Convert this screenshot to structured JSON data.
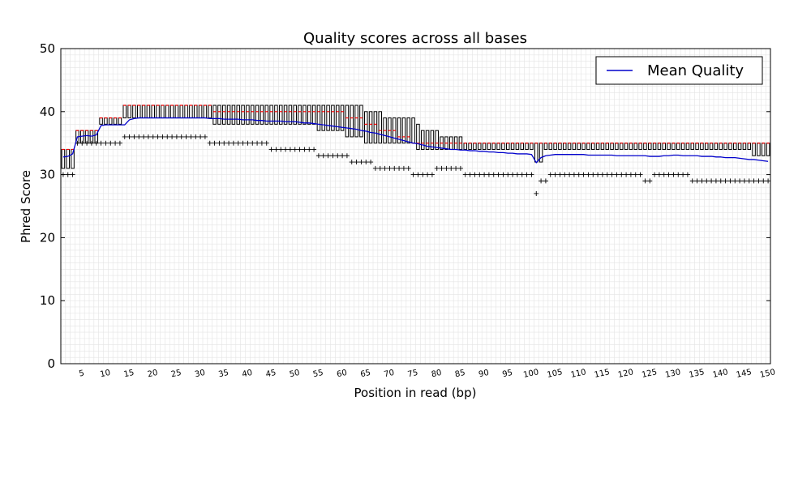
{
  "chart_data": {
    "type": "box",
    "title": "Quality scores across all bases",
    "xlabel": "Position in read (bp)",
    "ylabel": "Phred Score",
    "xlim": [
      1,
      150
    ],
    "ylim": [
      0,
      50
    ],
    "yticks": [
      0,
      10,
      20,
      30,
      40,
      50
    ],
    "xtick_labels": [
      "5",
      "10",
      "15",
      "20",
      "25",
      "30",
      "35",
      "40",
      "45",
      "50",
      "55",
      "60",
      "65",
      "70",
      "75",
      "80",
      "85",
      "90",
      "95",
      "100",
      "105",
      "110",
      "115",
      "120",
      "125",
      "130",
      "135",
      "140",
      "145",
      "150"
    ],
    "grid": true,
    "legend": {
      "entries": [
        "Mean Quality"
      ],
      "placement": "top-right"
    },
    "colors": {
      "mean": "#0000cc",
      "median": "#ff0000",
      "box": "#000000"
    },
    "positions": [
      1,
      2,
      3,
      4,
      5,
      6,
      7,
      8,
      9,
      10,
      11,
      12,
      13,
      14,
      15,
      16,
      17,
      18,
      19,
      20,
      21,
      22,
      23,
      24,
      25,
      26,
      27,
      28,
      29,
      30,
      31,
      32,
      33,
      34,
      35,
      36,
      37,
      38,
      39,
      40,
      41,
      42,
      43,
      44,
      45,
      46,
      47,
      48,
      49,
      50,
      51,
      52,
      53,
      54,
      55,
      56,
      57,
      58,
      59,
      60,
      61,
      62,
      63,
      64,
      65,
      66,
      67,
      68,
      69,
      70,
      71,
      72,
      73,
      74,
      75,
      76,
      77,
      78,
      79,
      80,
      81,
      82,
      83,
      84,
      85,
      86,
      87,
      88,
      89,
      90,
      91,
      92,
      93,
      94,
      95,
      96,
      97,
      98,
      99,
      100,
      101,
      102,
      103,
      104,
      105,
      106,
      107,
      108,
      109,
      110,
      111,
      112,
      113,
      114,
      115,
      116,
      117,
      118,
      119,
      120,
      121,
      122,
      123,
      124,
      125,
      126,
      127,
      128,
      129,
      130,
      131,
      132,
      133,
      134,
      135,
      136,
      137,
      138,
      139,
      140,
      141,
      142,
      143,
      144,
      145,
      146,
      147,
      148,
      149,
      150
    ],
    "series": [
      {
        "name": "Mean Quality",
        "values": [
          32.8,
          32.9,
          33.3,
          36,
          36.1,
          36.2,
          36.1,
          36.3,
          37.8,
          37.9,
          37.9,
          37.9,
          37.9,
          37.9,
          38.7,
          38.9,
          39.0,
          39.0,
          39.0,
          39.0,
          39.0,
          39.0,
          39.0,
          39.0,
          39.0,
          39.0,
          39.0,
          39.0,
          39.0,
          39.0,
          39.0,
          38.9,
          38.9,
          38.9,
          38.8,
          38.8,
          38.8,
          38.8,
          38.7,
          38.7,
          38.7,
          38.6,
          38.6,
          38.5,
          38.5,
          38.5,
          38.5,
          38.4,
          38.4,
          38.4,
          38.3,
          38.2,
          38.2,
          38.1,
          38.0,
          37.9,
          37.8,
          37.7,
          37.6,
          37.5,
          37.4,
          37.3,
          37.2,
          37.0,
          36.9,
          36.7,
          36.6,
          36.4,
          36.2,
          36.0,
          35.8,
          35.6,
          35.4,
          35.2,
          35.0,
          34.9,
          34.7,
          34.5,
          34.4,
          34.3,
          34.2,
          34.1,
          34.0,
          34.0,
          33.9,
          33.9,
          33.8,
          33.8,
          33.7,
          33.7,
          33.6,
          33.6,
          33.5,
          33.5,
          33.4,
          33.4,
          33.3,
          33.3,
          33.3,
          33.2,
          31.9,
          32.7,
          33.0,
          33.1,
          33.2,
          33.2,
          33.2,
          33.2,
          33.2,
          33.2,
          33.2,
          33.1,
          33.1,
          33.1,
          33.1,
          33.1,
          33.1,
          33.0,
          33.0,
          33.0,
          33.0,
          33.0,
          33.0,
          33.0,
          32.9,
          32.9,
          32.9,
          33.0,
          33.0,
          33.1,
          33.1,
          33.0,
          33.0,
          33.0,
          33.0,
          32.9,
          32.9,
          32.9,
          32.8,
          32.8,
          32.7,
          32.7,
          32.7,
          32.6,
          32.5,
          32.4,
          32.4,
          32.3,
          32.2,
          32.1
        ]
      },
      {
        "name": "Median",
        "values": [
          34,
          34,
          34,
          37,
          37,
          37,
          37,
          37,
          39,
          39,
          39,
          39,
          39,
          41,
          41,
          41,
          41,
          41,
          41,
          41,
          41,
          41,
          41,
          41,
          41,
          41,
          41,
          41,
          41,
          41,
          41,
          41,
          40,
          40,
          40,
          40,
          40,
          40,
          40,
          40,
          40,
          40,
          40,
          40,
          40,
          40,
          40,
          40,
          40,
          40,
          40,
          40,
          40,
          40,
          40,
          40,
          40,
          40,
          40,
          40,
          39,
          39,
          39,
          39,
          38,
          38,
          38,
          37,
          37,
          37,
          37,
          36,
          36,
          36,
          35,
          35,
          35,
          35,
          35,
          35,
          35,
          35,
          35,
          35,
          35,
          35,
          35,
          35,
          35,
          35,
          35,
          35,
          35,
          35,
          35,
          35,
          35,
          35,
          35,
          35,
          35,
          35,
          35,
          35,
          35,
          35,
          35,
          35,
          35,
          35,
          35,
          35,
          35,
          35,
          35,
          35,
          35,
          35,
          35,
          35,
          35,
          35,
          35,
          35,
          35,
          35,
          35,
          35,
          35,
          35,
          35,
          35,
          35,
          35,
          35,
          35,
          35,
          35,
          35,
          35,
          35,
          35,
          35,
          35,
          35,
          35,
          35,
          35,
          35,
          35
        ]
      },
      {
        "name": "Upper Quartile",
        "values": [
          34,
          34,
          34,
          37,
          37,
          37,
          37,
          37,
          39,
          39,
          39,
          39,
          39,
          41,
          41,
          41,
          41,
          41,
          41,
          41,
          41,
          41,
          41,
          41,
          41,
          41,
          41,
          41,
          41,
          41,
          41,
          41,
          41,
          41,
          41,
          41,
          41,
          41,
          41,
          41,
          41,
          41,
          41,
          41,
          41,
          41,
          41,
          41,
          41,
          41,
          41,
          41,
          41,
          41,
          41,
          41,
          41,
          41,
          41,
          41,
          41,
          41,
          41,
          41,
          40,
          40,
          40,
          40,
          39,
          39,
          39,
          39,
          39,
          39,
          39,
          38,
          37,
          37,
          37,
          37,
          36,
          36,
          36,
          36,
          36,
          35,
          35,
          35,
          35,
          35,
          35,
          35,
          35,
          35,
          35,
          35,
          35,
          35,
          35,
          35,
          35,
          35,
          35,
          35,
          35,
          35,
          35,
          35,
          35,
          35,
          35,
          35,
          35,
          35,
          35,
          35,
          35,
          35,
          35,
          35,
          35,
          35,
          35,
          35,
          35,
          35,
          35,
          35,
          35,
          35,
          35,
          35,
          35,
          35,
          35,
          35,
          35,
          35,
          35,
          35,
          35,
          35,
          35,
          35,
          35,
          35,
          35,
          35,
          35,
          35
        ]
      },
      {
        "name": "Lower Quartile",
        "values": [
          31,
          31,
          31,
          35,
          35,
          35,
          35,
          35,
          38,
          38,
          38,
          38,
          38,
          39,
          39,
          39,
          39,
          39,
          39,
          39,
          39,
          39,
          39,
          39,
          39,
          39,
          39,
          39,
          39,
          39,
          39,
          39,
          38,
          38,
          38,
          38,
          38,
          38,
          38,
          38,
          38,
          38,
          38,
          38,
          38,
          38,
          38,
          38,
          38,
          38,
          38,
          38,
          38,
          38,
          37,
          37,
          37,
          37,
          37,
          37,
          36,
          36,
          36,
          36,
          35,
          35,
          35,
          35,
          35,
          35,
          35,
          35,
          35,
          35,
          35,
          34,
          34,
          34,
          34,
          34,
          34,
          34,
          34,
          34,
          34,
          34,
          34,
          34,
          34,
          34,
          34,
          34,
          34,
          34,
          34,
          34,
          34,
          34,
          34,
          34,
          32,
          32,
          34,
          34,
          34,
          34,
          34,
          34,
          34,
          34,
          34,
          34,
          34,
          34,
          34,
          34,
          34,
          34,
          34,
          34,
          34,
          34,
          34,
          34,
          34,
          34,
          34,
          34,
          34,
          34,
          34,
          34,
          34,
          34,
          34,
          34,
          34,
          34,
          34,
          34,
          34,
          34,
          34,
          34,
          34,
          34,
          33,
          33,
          33,
          33
        ]
      },
      {
        "name": "10th Percentile",
        "values": [
          30,
          30,
          30,
          35,
          35,
          35,
          35,
          35,
          35,
          35,
          35,
          35,
          35,
          36,
          36,
          36,
          36,
          36,
          36,
          36,
          36,
          36,
          36,
          36,
          36,
          36,
          36,
          36,
          36,
          36,
          36,
          35,
          35,
          35,
          35,
          35,
          35,
          35,
          35,
          35,
          35,
          35,
          35,
          35,
          34,
          34,
          34,
          34,
          34,
          34,
          34,
          34,
          34,
          34,
          33,
          33,
          33,
          33,
          33,
          33,
          33,
          32,
          32,
          32,
          32,
          32,
          31,
          31,
          31,
          31,
          31,
          31,
          31,
          31,
          30,
          30,
          30,
          30,
          30,
          31,
          31,
          31,
          31,
          31,
          31,
          30,
          30,
          30,
          30,
          30,
          30,
          30,
          30,
          30,
          30,
          30,
          30,
          30,
          30,
          30,
          27,
          29,
          29,
          30,
          30,
          30,
          30,
          30,
          30,
          30,
          30,
          30,
          30,
          30,
          30,
          30,
          30,
          30,
          30,
          30,
          30,
          30,
          30,
          29,
          29,
          30,
          30,
          30,
          30,
          30,
          30,
          30,
          30,
          29,
          29,
          29,
          29,
          29,
          29,
          29,
          29,
          29,
          29,
          29,
          29,
          29,
          29,
          29,
          29,
          29
        ]
      }
    ]
  }
}
